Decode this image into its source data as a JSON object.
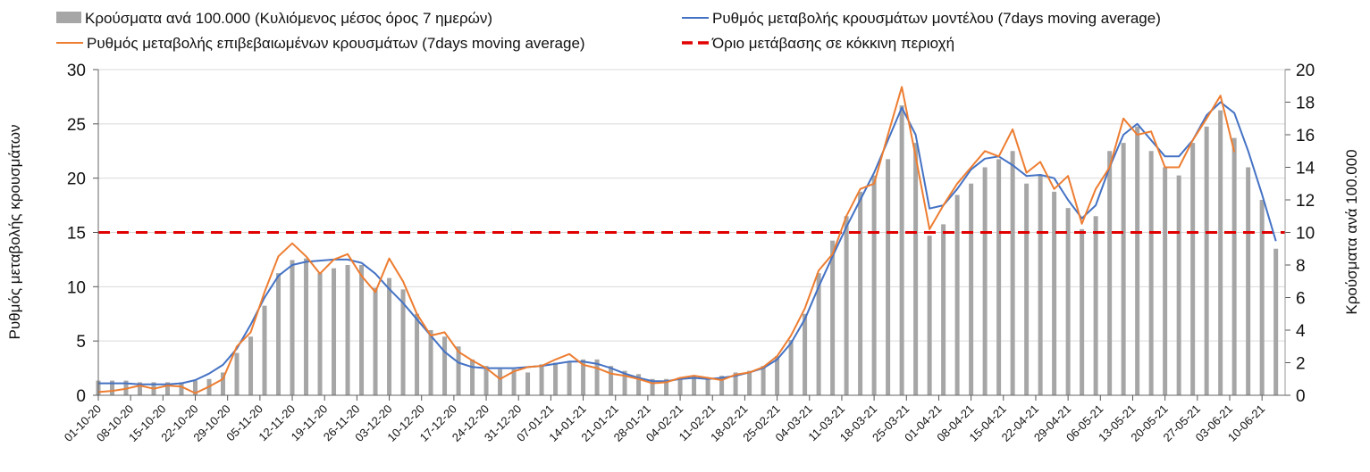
{
  "chart_data": {
    "type": "bar+line",
    "legend": [
      {
        "label": "Κρούσματα ανά 100.000 (Κυλιόμενος μέσος όρος 7 ημερών)",
        "kind": "bar",
        "color": "#a6a6a6"
      },
      {
        "label": "Ρυθμός μεταβολής κρουσμάτων μοντέλου (7days moving average)",
        "kind": "line",
        "color": "#4472c4"
      },
      {
        "label": "Ρυθμός μεταβολής επιβεβαιωμένων κρουσμάτων (7days moving average)",
        "kind": "line",
        "color": "#ed7d31"
      },
      {
        "label": "Όριο μετάβασης σε κόκκινη περιοχή",
        "kind": "dashed",
        "color": "#e00000"
      }
    ],
    "ylabel_left": "Ρυθμός μεταβολής κρουσμάτων",
    "ylabel_right": "Κρούσματα ανά 100.000",
    "ylim_left": [
      0,
      30
    ],
    "ylim_right": [
      0,
      20
    ],
    "yticks_left": [
      "0",
      "5",
      "10",
      "15",
      "20",
      "25",
      "30"
    ],
    "yticks_right": [
      "0",
      "2",
      "4",
      "6",
      "8",
      "10",
      "12",
      "14",
      "16",
      "18",
      "20"
    ],
    "threshold_left": 15,
    "x_start": "01-10-20",
    "x_days_total": 257,
    "sample_step_days": 3,
    "xticks": [
      "01-10-20",
      "08-10-20",
      "15-10-20",
      "22-10-20",
      "29-10-20",
      "05-11-20",
      "12-11-20",
      "19-11-20",
      "26-11-20",
      "03-12-20",
      "10-12-20",
      "17-12-20",
      "24-12-20",
      "31-12-20",
      "07-01-21",
      "14-01-21",
      "21-01-21",
      "28-01-21",
      "04-02-21",
      "11-02-21",
      "18-02-21",
      "25-02-21",
      "04-03-21",
      "11-03-21",
      "18-03-21",
      "25-03-21",
      "01-04-21",
      "08-04-21",
      "15-04-21",
      "22-04-21",
      "29-04-21",
      "06-05-21",
      "13-05-21",
      "20-05-21",
      "27-05-21",
      "03-06-21",
      "10-06-21"
    ],
    "series": [
      {
        "name": "cases_per_100k",
        "axis": "right",
        "values": [
          0.9,
          0.9,
          0.9,
          0.8,
          0.8,
          0.8,
          0.8,
          0.9,
          1.0,
          1.4,
          2.6,
          3.6,
          5.5,
          7.5,
          8.3,
          8.4,
          7.5,
          7.8,
          8.0,
          8.0,
          6.6,
          7.2,
          6.5,
          5.0,
          4.0,
          3.6,
          3.0,
          2.2,
          1.8,
          1.6,
          1.6,
          1.4,
          1.9,
          2.0,
          2.1,
          2.2,
          2.2,
          1.8,
          1.5,
          1.3,
          1.0,
          1.0,
          1.1,
          1.2,
          1.1,
          1.2,
          1.4,
          1.5,
          1.8,
          2.4,
          3.4,
          5.0,
          7.5,
          9.5,
          11.0,
          12.5,
          13.5,
          14.5,
          17.8,
          15.5,
          9.8,
          10.5,
          12.3,
          13.0,
          14.0,
          14.5,
          15.0,
          13.0,
          13.5,
          12.5,
          11.5,
          10.2,
          11.0,
          15.0,
          15.5,
          16.5,
          15.0,
          14.0,
          13.5,
          15.5,
          16.5,
          17.5,
          15.8,
          14.0,
          12.0,
          9.0
        ]
      },
      {
        "name": "model_rate",
        "axis": "left",
        "values": [
          1.1,
          1.1,
          1.1,
          1.0,
          1.0,
          1.0,
          1.1,
          1.4,
          2.0,
          2.8,
          4.3,
          6.5,
          9.0,
          11.0,
          12.0,
          12.3,
          12.4,
          12.5,
          12.5,
          12.2,
          11.2,
          9.8,
          8.5,
          7.0,
          5.5,
          4.0,
          3.0,
          2.6,
          2.5,
          2.5,
          2.5,
          2.6,
          2.7,
          2.9,
          3.1,
          3.1,
          2.9,
          2.5,
          2.0,
          1.6,
          1.3,
          1.3,
          1.5,
          1.6,
          1.5,
          1.6,
          1.8,
          2.1,
          2.5,
          3.3,
          4.8,
          7.0,
          10.0,
          12.8,
          15.5,
          18.0,
          20.5,
          23.5,
          26.5,
          24.0,
          17.2,
          17.5,
          19.0,
          20.8,
          21.8,
          22.0,
          21.2,
          20.2,
          20.3,
          20.0,
          18.0,
          16.3,
          17.5,
          21.0,
          24.0,
          25.0,
          23.5,
          22.0,
          22.0,
          23.5,
          25.8,
          27.0,
          26.0,
          22.5,
          18.5,
          14.2
        ]
      },
      {
        "name": "confirmed_rate",
        "axis": "left",
        "values": [
          0.3,
          0.4,
          0.6,
          0.9,
          0.6,
          0.9,
          0.8,
          0.2,
          0.8,
          1.5,
          4.5,
          5.8,
          9.5,
          12.8,
          14.0,
          12.8,
          11.2,
          12.5,
          13.0,
          11.0,
          9.5,
          12.6,
          10.5,
          7.5,
          5.5,
          5.8,
          4.0,
          3.2,
          2.5,
          1.5,
          2.2,
          2.6,
          2.7,
          3.3,
          3.8,
          2.8,
          2.5,
          2.0,
          1.8,
          1.5,
          1.1,
          1.2,
          1.6,
          1.8,
          1.6,
          1.4,
          1.9,
          2.1,
          2.6,
          3.6,
          5.5,
          8.0,
          11.5,
          13.0,
          16.5,
          19.0,
          19.5,
          24.0,
          28.4,
          22.0,
          15.3,
          17.5,
          19.5,
          21.0,
          22.5,
          22.0,
          24.5,
          20.5,
          21.5,
          19.0,
          20.2,
          15.8,
          19.0,
          21.0,
          25.5,
          24.0,
          24.3,
          21.0,
          21.0,
          23.5,
          25.5,
          27.6,
          22.4,
          null,
          null,
          null
        ]
      }
    ]
  }
}
